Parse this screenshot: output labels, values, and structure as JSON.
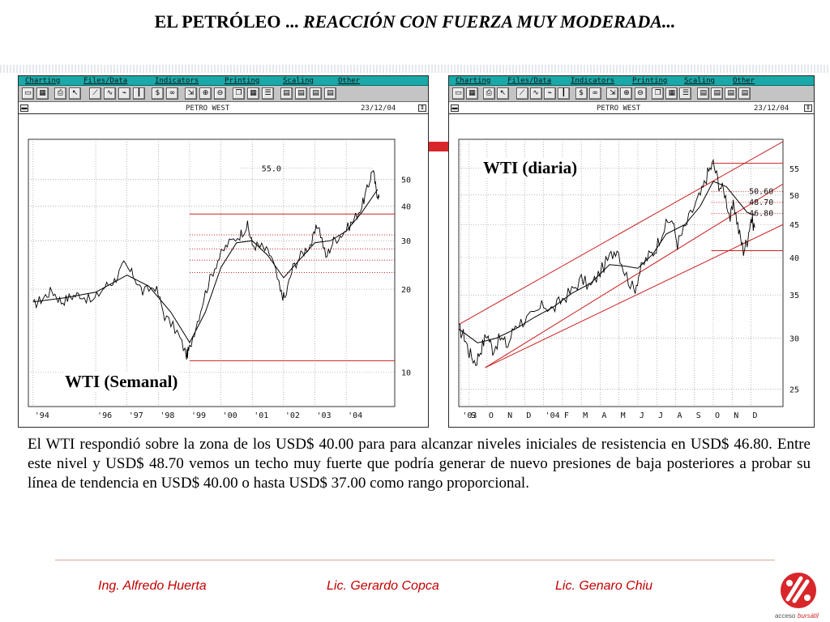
{
  "slide": {
    "title_plain": "EL PETRÓLEO ... ",
    "title_italic": "REACCIÓN CON FUERZA MUY MODERADA..."
  },
  "windows": [
    {
      "menu": [
        "Charting",
        "Files/Data",
        "Indicators",
        "Printing",
        "Scaling",
        "Other"
      ],
      "chart_title": "PETRO WEST",
      "chart_date": "23/12/04"
    },
    {
      "menu": [
        "Charting",
        "Files/Data",
        "Indicators",
        "Printing",
        "Scaling",
        "Other"
      ],
      "chart_title": "PETRO WEST",
      "chart_date": "23/12/04"
    }
  ],
  "toolbar_icons": [
    "open-icon",
    "calendar-icon",
    "print-icon",
    "cursor-icon",
    "line-icon",
    "wave-icon",
    "indicator-icon",
    "bars-icon",
    "dollar-icon",
    "binoculars-icon",
    "scale-icon",
    "zoom-in-icon",
    "zoom-out-icon",
    "window-icon",
    "grid-icon",
    "list-icon",
    "rec1-icon",
    "rec2-icon",
    "rec3-icon",
    "rec4-icon"
  ],
  "chart_data": [
    {
      "type": "line",
      "title": "WTI (Semanal)",
      "scale": "log",
      "x_tick_labels": [
        "'94",
        "'96",
        "'97",
        "'98",
        "'99",
        "'00",
        "'01",
        "'02",
        "'03",
        "'04"
      ],
      "x_tick_years": [
        1994.0,
        1996.0,
        1997.0,
        1998.0,
        1999.0,
        2000.0,
        2001.0,
        2002.0,
        2003.0,
        2004.0
      ],
      "xlim": [
        1993.85,
        2005.55
      ],
      "y_tick_values": [
        50,
        40,
        30,
        20,
        10
      ],
      "y_tick_labels": [
        "50",
        "40",
        "30",
        "20",
        "10"
      ],
      "ylim": [
        7.5,
        70
      ],
      "annotation": "55.0",
      "annotation_value": 55.0,
      "series": [
        {
          "kind": "price",
          "points": [
            [
              1994.0,
              17.5
            ],
            [
              1994.3,
              18.5
            ],
            [
              1994.6,
              19.8
            ],
            [
              1994.9,
              18.0
            ],
            [
              1995.2,
              18.8
            ],
            [
              1995.5,
              19.2
            ],
            [
              1995.9,
              18.0
            ],
            [
              1996.3,
              20.5
            ],
            [
              1996.6,
              21.5
            ],
            [
              1996.9,
              24.5
            ],
            [
              1997.2,
              22.5
            ],
            [
              1997.5,
              19.5
            ],
            [
              1997.9,
              20.5
            ],
            [
              1998.2,
              16.0
            ],
            [
              1998.6,
              14.0
            ],
            [
              1998.9,
              11.5
            ],
            [
              1999.0,
              12.2
            ],
            [
              1999.3,
              16.0
            ],
            [
              1999.6,
              21.0
            ],
            [
              1999.9,
              25.5
            ],
            [
              2000.2,
              29.0
            ],
            [
              2000.6,
              31.5
            ],
            [
              2000.85,
              34.0
            ],
            [
              2001.0,
              29.0
            ],
            [
              2001.3,
              28.5
            ],
            [
              2001.6,
              26.5
            ],
            [
              2001.9,
              19.5
            ],
            [
              2002.05,
              18.5
            ],
            [
              2002.3,
              24.0
            ],
            [
              2002.6,
              27.0
            ],
            [
              2002.9,
              29.5
            ],
            [
              2003.1,
              34.5
            ],
            [
              2003.35,
              26.0
            ],
            [
              2003.6,
              30.0
            ],
            [
              2003.9,
              32.0
            ],
            [
              2004.2,
              35.0
            ],
            [
              2004.5,
              40.0
            ],
            [
              2004.7,
              47.0
            ],
            [
              2004.85,
              55.0
            ],
            [
              2004.95,
              46.0
            ],
            [
              2005.05,
              43.0
            ]
          ]
        },
        {
          "kind": "moving_average",
          "points": [
            [
              1994.0,
              18.0
            ],
            [
              1995.0,
              18.6
            ],
            [
              1996.0,
              19.5
            ],
            [
              1997.0,
              22.5
            ],
            [
              1997.7,
              20.5
            ],
            [
              1998.4,
              16.5
            ],
            [
              1999.0,
              12.8
            ],
            [
              1999.5,
              16.5
            ],
            [
              2000.0,
              24.0
            ],
            [
              2000.5,
              29.5
            ],
            [
              2001.0,
              30.0
            ],
            [
              2001.5,
              26.5
            ],
            [
              2002.0,
              22.0
            ],
            [
              2002.5,
              25.5
            ],
            [
              2003.0,
              29.5
            ],
            [
              2003.5,
              30.0
            ],
            [
              2004.0,
              32.5
            ],
            [
              2004.5,
              38.0
            ],
            [
              2005.0,
              46.0
            ]
          ]
        }
      ],
      "hlines": [
        {
          "value": 37.5,
          "style": "solid-red",
          "from_year": 1999.0
        },
        {
          "value": 31.5,
          "style": "dotted-red",
          "from_year": 1999.0
        },
        {
          "value": 28.0,
          "style": "dotted-red",
          "from_year": 1999.0
        },
        {
          "value": 25.5,
          "style": "dotted-red",
          "from_year": 1999.0
        },
        {
          "value": 23.0,
          "style": "dotted-red",
          "from_year": 1999.0
        },
        {
          "value": 11.0,
          "style": "solid-red",
          "from_year": 1999.0
        }
      ]
    },
    {
      "type": "line",
      "title": "WTI (diaria)",
      "scale": "log",
      "x_tick_labels": [
        "'03",
        "S",
        "O",
        "N",
        "D",
        "'04",
        "F",
        "M",
        "A",
        "M",
        "J",
        "J",
        "A",
        "S",
        "O",
        "N",
        "D"
      ],
      "x_tick_months": [
        0.1,
        0.55,
        1.5,
        2.5,
        3.5,
        4.5,
        5.5,
        6.5,
        7.5,
        8.5,
        9.5,
        10.5,
        11.5,
        12.5,
        13.5,
        14.5,
        15.5
      ],
      "xlim": [
        0.0,
        17.2
      ],
      "y_tick_values": [
        55,
        50,
        45,
        40,
        35,
        30,
        25
      ],
      "y_tick_labels": [
        "55",
        "50",
        "45",
        "40",
        "35",
        "30",
        "25"
      ],
      "ylim": [
        23.5,
        61
      ],
      "levels": [
        {
          "label": "50.60",
          "value": 50.6
        },
        {
          "label": "48.70",
          "value": 48.7
        },
        {
          "label": "46.80",
          "value": 46.8
        }
      ],
      "series": [
        {
          "kind": "price",
          "points": [
            [
              0.0,
              31.0
            ],
            [
              0.3,
              30.2
            ],
            [
              0.55,
              28.5
            ],
            [
              0.9,
              27.5
            ],
            [
              1.2,
              29.0
            ],
            [
              1.5,
              30.5
            ],
            [
              1.8,
              28.8
            ],
            [
              2.2,
              30.0
            ],
            [
              2.6,
              29.2
            ],
            [
              3.0,
              31.5
            ],
            [
              3.5,
              32.0
            ],
            [
              4.0,
              32.5
            ],
            [
              4.5,
              33.8
            ],
            [
              5.0,
              33.2
            ],
            [
              5.5,
              34.5
            ],
            [
              6.0,
              35.5
            ],
            [
              6.5,
              37.0
            ],
            [
              7.0,
              36.0
            ],
            [
              7.5,
              38.0
            ],
            [
              8.0,
              40.0
            ],
            [
              8.4,
              41.5
            ],
            [
              8.8,
              38.0
            ],
            [
              9.3,
              35.5
            ],
            [
              9.6,
              38.0
            ],
            [
              10.0,
              40.0
            ],
            [
              10.4,
              41.0
            ],
            [
              10.8,
              44.0
            ],
            [
              11.3,
              46.0
            ],
            [
              11.6,
              42.0
            ],
            [
              12.0,
              44.5
            ],
            [
              12.5,
              48.0
            ],
            [
              12.9,
              50.5
            ],
            [
              13.2,
              54.0
            ],
            [
              13.5,
              56.0
            ],
            [
              13.8,
              52.0
            ],
            [
              14.1,
              50.5
            ],
            [
              14.4,
              46.0
            ],
            [
              14.6,
              48.5
            ],
            [
              14.85,
              44.0
            ],
            [
              15.1,
              41.0
            ],
            [
              15.3,
              42.5
            ],
            [
              15.5,
              46.0
            ],
            [
              15.7,
              44.5
            ]
          ]
        },
        {
          "kind": "moving_average",
          "points": [
            [
              0.0,
              31.0
            ],
            [
              1.0,
              29.5
            ],
            [
              2.0,
              30.0
            ],
            [
              3.0,
              31.0
            ],
            [
              4.0,
              32.3
            ],
            [
              5.0,
              33.5
            ],
            [
              6.0,
              35.2
            ],
            [
              7.0,
              36.5
            ],
            [
              8.0,
              39.0
            ],
            [
              8.8,
              38.8
            ],
            [
              9.5,
              38.5
            ],
            [
              10.3,
              40.5
            ],
            [
              11.0,
              43.5
            ],
            [
              12.0,
              45.0
            ],
            [
              12.8,
              48.0
            ],
            [
              13.5,
              52.5
            ],
            [
              14.2,
              51.5
            ],
            [
              14.8,
              49.0
            ],
            [
              15.3,
              47.0
            ],
            [
              15.7,
              46.5
            ]
          ]
        }
      ],
      "trend_lines": [
        {
          "points": [
            [
              0.0,
              31.5
            ],
            [
              17.2,
              60.5
            ]
          ]
        },
        {
          "points": [
            [
              1.4,
              27.0
            ],
            [
              17.2,
              52.0
            ]
          ]
        },
        {
          "points": [
            [
              1.4,
              27.0
            ],
            [
              17.2,
              45.0
            ]
          ]
        }
      ],
      "hlines": [
        {
          "value": 56.0,
          "style": "solid-red",
          "from_month": 13.4
        },
        {
          "value": 50.6,
          "style": "dotted-red",
          "from_month": 13.4
        },
        {
          "value": 48.7,
          "style": "dotted-red",
          "from_month": 13.4
        },
        {
          "value": 46.8,
          "style": "dotted-red",
          "from_month": 13.4
        },
        {
          "value": 41.0,
          "style": "solid-red",
          "from_month": 13.4
        }
      ]
    }
  ],
  "chart_labels": [
    "WTI (Semanal)",
    "WTI (diaria)"
  ],
  "body_text": "El WTI respondió sobre la zona de los USD$ 40.00 para para alcanzar niveles iniciales de resistencia en USD$ 46.80. Entre este nivel y USD$ 48.70 vemos un techo muy fuerte que podría generar de nuevo presiones de baja posteriores a probar su línea de tendencia en USD$ 40.00 o hasta USD$ 37.00 como rango proporcional.",
  "footer": {
    "authors": [
      "Ing. Alfredo Huerta",
      "Lic. Gerardo Copca",
      "Lic. Genaro Chiu"
    ],
    "logo_text_plain": "acceso",
    "logo_text_colored": "bursátil"
  },
  "colors": {
    "price": "#000000",
    "levels": "#cc2222",
    "menubar": "#1aa8a8",
    "chart_bg": "#ffffff",
    "footer_text": "#c00000",
    "accent": "#d8262a"
  }
}
